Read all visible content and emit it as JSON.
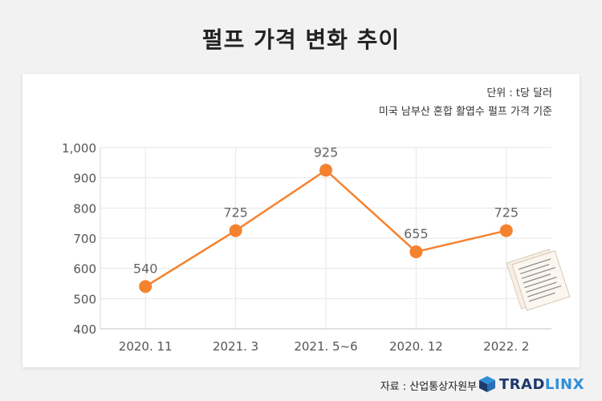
{
  "title": "펄프 가격 변화 추이",
  "notes": {
    "unit": "단위 : t당 달러",
    "basis": "미국 남부산 혼합 활엽수 펄프 가격 기준"
  },
  "source": "자료 : 산업통상자원부",
  "logo": {
    "part1": "TRAD",
    "part2": "LINX",
    "icon": "cube-logo-icon"
  },
  "colors": {
    "line": "#f5822f",
    "point": "#f5822f",
    "grid": "#e6e6e6",
    "axis_text": "#555555",
    "label_text": "#666666"
  },
  "chart_data": {
    "type": "line",
    "categories": [
      "2020. 11",
      "2021. 3",
      "2021. 5~6",
      "2020. 12",
      "2022. 2"
    ],
    "values": [
      540,
      725,
      925,
      655,
      725
    ],
    "data_labels": [
      "540",
      "725",
      "925",
      "655",
      "725"
    ],
    "yticks": [
      "400",
      "500",
      "600",
      "700",
      "800",
      "900",
      "1,000"
    ],
    "ylim": [
      400,
      1000
    ],
    "grid": true,
    "legend": "none",
    "title": "펄프 가격 변화 추이",
    "xlabel": "",
    "ylabel": ""
  }
}
